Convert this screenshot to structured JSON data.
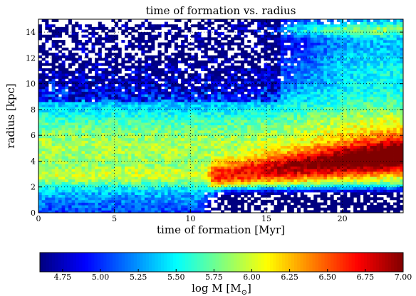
{
  "chart_data": {
    "type": "heatmap",
    "title": "time of formation vs. radius",
    "xlabel": "time of formation [Myr]",
    "ylabel": "radius [kpc]",
    "xlim": [
      0,
      24
    ],
    "ylim": [
      0,
      15
    ],
    "x_ticks": [
      0,
      5,
      10,
      15,
      20
    ],
    "x_tick_labels": [
      "0",
      "5",
      "10",
      "15",
      "20"
    ],
    "y_ticks": [
      0,
      2,
      4,
      6,
      8,
      10,
      12,
      14
    ],
    "y_tick_labels": [
      "0",
      "2",
      "4",
      "6",
      "8",
      "10",
      "12",
      "14"
    ],
    "grid": true,
    "grid_style": "dotted",
    "colormap": "jet",
    "colorbar": {
      "orientation": "horizontal",
      "placement": "bottom",
      "label": "log M [M",
      "label_subscript": "⊙",
      "label_suffix": "]",
      "range": [
        4.6,
        7.0
      ],
      "ticks": [
        4.75,
        5.0,
        5.25,
        5.5,
        5.75,
        6.0,
        6.25,
        6.5,
        6.75,
        7.0
      ],
      "tick_labels": [
        "4.75",
        "5.00",
        "5.25",
        "5.50",
        "5.75",
        "6.00",
        "6.25",
        "6.50",
        "6.75",
        "7.00"
      ]
    },
    "bins": {
      "x": 110,
      "y": 75
    },
    "features": [
      {
        "band": "inner warm ridge",
        "x_start": 11,
        "x_end": 24,
        "r_start": 2.5,
        "r_end": 4.3,
        "log_m_peak": 6.8
      },
      {
        "band": "early ring",
        "x_start": 0,
        "x_end": 11,
        "r_center": 2.8,
        "log_m": 6.2
      },
      {
        "band": "mid-disk plateau",
        "r_center": 5.2,
        "log_m": 5.9
      },
      {
        "band": "outer sparse zone",
        "x_start": 0,
        "x_end": 16,
        "r_start": 9,
        "r_end": 15,
        "log_m": 4.9
      },
      {
        "band": "outer edge strip",
        "r_center": 14.2,
        "x_start": 14,
        "x_end": 24,
        "log_m": 5.9
      }
    ]
  }
}
